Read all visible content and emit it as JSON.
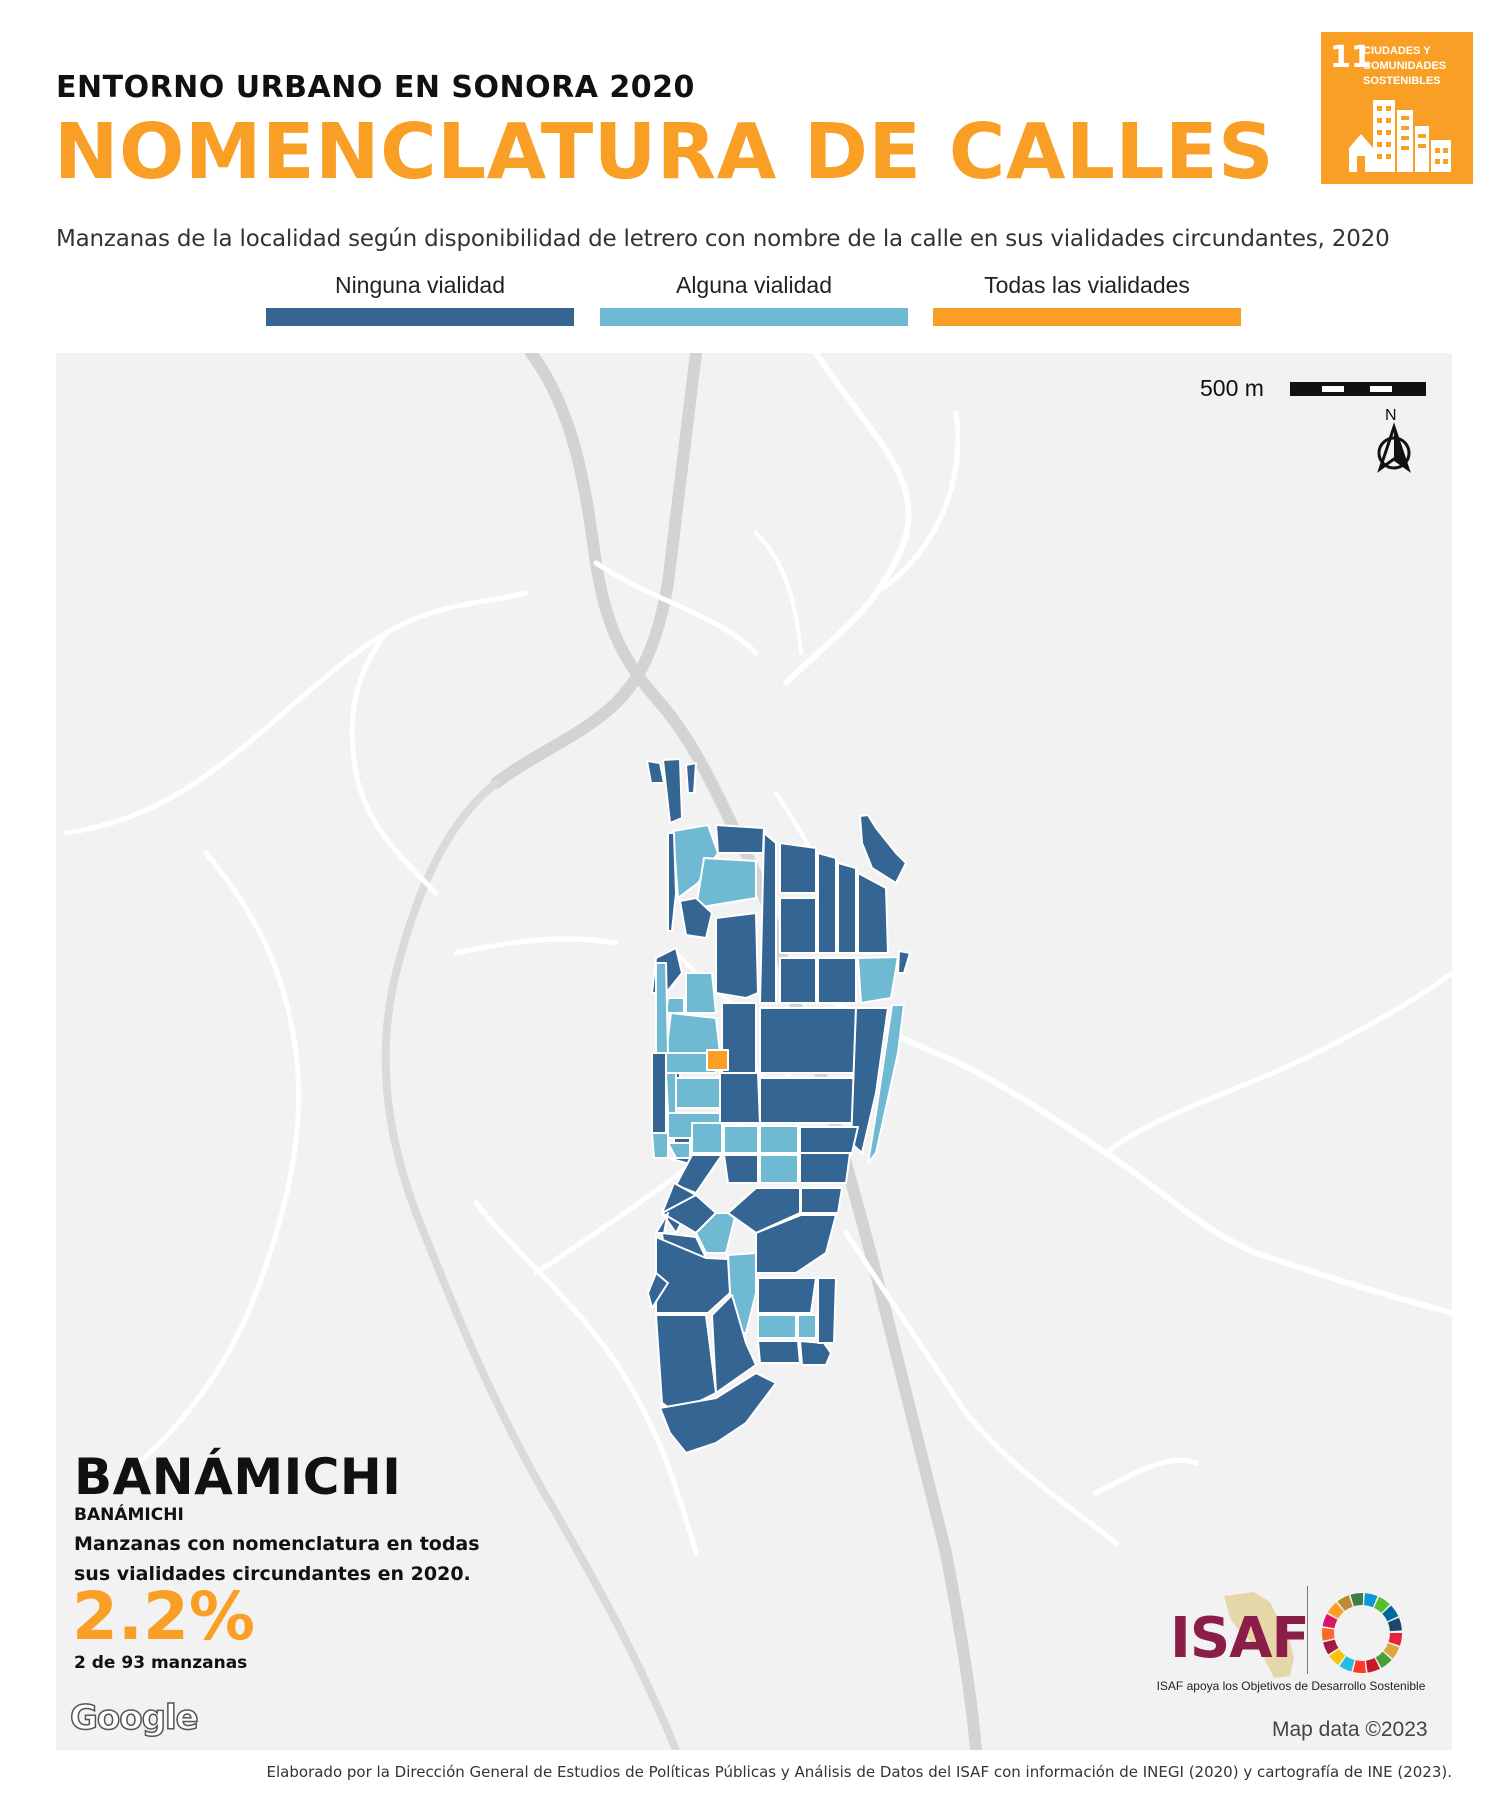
{
  "header": {
    "kicker": "ENTORNO URBANO EN SONORA 2020",
    "title": "NOMENCLATURA DE CALLES",
    "subtitle": "Manzanas de la localidad según disponibilidad de letrero con nombre de la calle en sus vialidades circundantes, 2020"
  },
  "sdg_badge": {
    "number": "11",
    "text": "CIUDADES Y COMUNIDADES SOSTENIBLES",
    "color": "#F99F26",
    "icon": "city-buildings-icon"
  },
  "legend": [
    {
      "label": "Ninguna vialidad",
      "color": "#356593"
    },
    {
      "label": "Alguna vialidad",
      "color": "#6FB9D3"
    },
    {
      "label": "Todas las vialidades",
      "color": "#F99F26"
    }
  ],
  "map": {
    "scale_label": "500 m",
    "north_label": "N",
    "attribution": "Map data ©2023",
    "provider_logo": "Google"
  },
  "summary": {
    "locality": "BANÁMICHI",
    "municipality": "BANÁMICHI",
    "description": "Manzanas con nomenclatura en todas sus vialidades circundantes en 2020.",
    "percent": "2.2%",
    "count": "2 de 93 manzanas"
  },
  "branding": {
    "isaf_logo": "ISAF",
    "isaf_tagline": "ISAF apoya los Objetivos de Desarrollo Sostenible",
    "sdg_wheel": "sdg-wheel-icon"
  },
  "footer": "Elaborado por la Dirección General de Estudios de Políticas Públicas y Análisis de Datos del ISAF con información de INEGI (2020) y cartografía de INE (2023)."
}
